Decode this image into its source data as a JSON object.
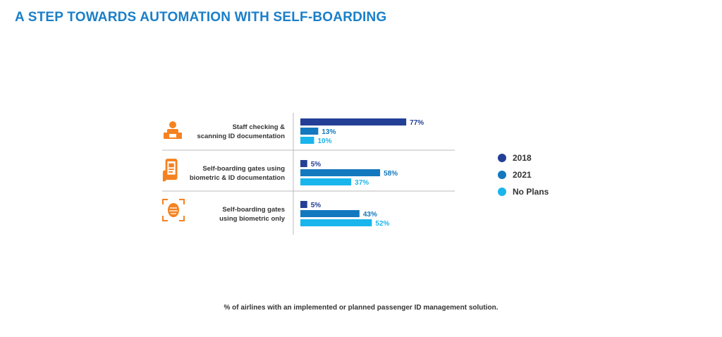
{
  "title": "A STEP TOWARDS AUTOMATION WITH SELF-BOARDING",
  "footnote": "% of airlines with an implemented or planned passenger ID management solution.",
  "colors": {
    "y2018": "#233f96",
    "y2021": "#1478bf",
    "noplans": "#1ab5ec",
    "icon": "#f58220",
    "divider": "#bbbbbb"
  },
  "chart_data": {
    "type": "bar",
    "orientation": "horizontal",
    "categories": [
      [
        "Staff checking &",
        "scanning ID documentation"
      ],
      [
        "Self-boarding gates using",
        "biometric & ID documentation"
      ],
      [
        "Self-boarding gates",
        "using biometric only"
      ]
    ],
    "icons": [
      "staff-icon",
      "mobile-id-icon",
      "face-scan-icon"
    ],
    "series": [
      {
        "name": "2018",
        "values": [
          77,
          5,
          5
        ]
      },
      {
        "name": "2021",
        "values": [
          13,
          58,
          43
        ]
      },
      {
        "name": "No Plans",
        "values": [
          10,
          37,
          52
        ]
      }
    ],
    "value_suffix": "%",
    "xlim": [
      0,
      100
    ],
    "legend_position": "right",
    "grid": false
  }
}
